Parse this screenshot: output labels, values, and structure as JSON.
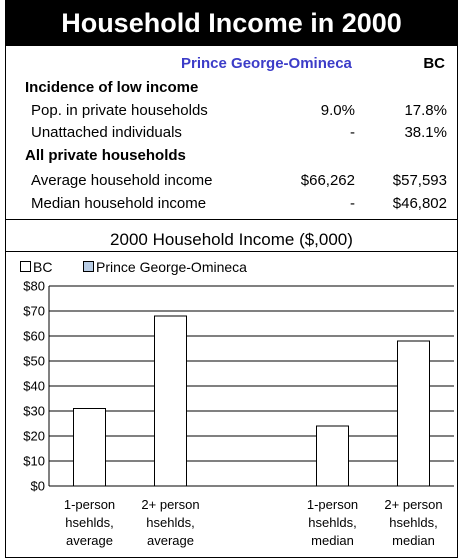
{
  "title": "Household Income in 2000",
  "table": {
    "header": {
      "region": "Prince George-Omineca",
      "province": "BC"
    },
    "sections": [
      {
        "heading": "Incidence of low income",
        "rows": [
          {
            "label": "Pop. in private households",
            "region": "9.0%",
            "province": "17.8%"
          },
          {
            "label": "Unattached individuals",
            "region": "-",
            "province": "38.1%"
          }
        ]
      },
      {
        "heading": "All private households",
        "rows": [
          {
            "label": "Average household income",
            "region": "$66,262",
            "province": "$57,593"
          },
          {
            "label": "Median household income",
            "region": "-",
            "province": "$46,802"
          }
        ]
      }
    ]
  },
  "chart_data": {
    "type": "bar",
    "title": "2000 Household Income ($,000)",
    "legend": [
      {
        "name": "BC",
        "color": "#ffffff"
      },
      {
        "name": "Prince George-Omineca",
        "color": "#b9cde5"
      }
    ],
    "legend_position": "top-left",
    "categories": [
      [
        "1-person",
        "hsehlds,",
        "average"
      ],
      [
        "2+ person",
        "hsehlds,",
        "average"
      ],
      [
        "",
        "",
        ""
      ],
      [
        "1-person",
        "hsehlds,",
        "median"
      ],
      [
        "2+ person",
        "hsehlds,",
        "median"
      ]
    ],
    "series": [
      {
        "name": "BC",
        "values": [
          31,
          68,
          null,
          24,
          58
        ]
      }
    ],
    "ylim": [
      0,
      80
    ],
    "yticks": [
      0,
      10,
      20,
      30,
      40,
      50,
      60,
      70,
      80
    ],
    "ytick_labels": [
      "$0",
      "$10",
      "$20",
      "$30",
      "$40",
      "$50",
      "$60",
      "$70",
      "$80"
    ],
    "grid": true
  }
}
